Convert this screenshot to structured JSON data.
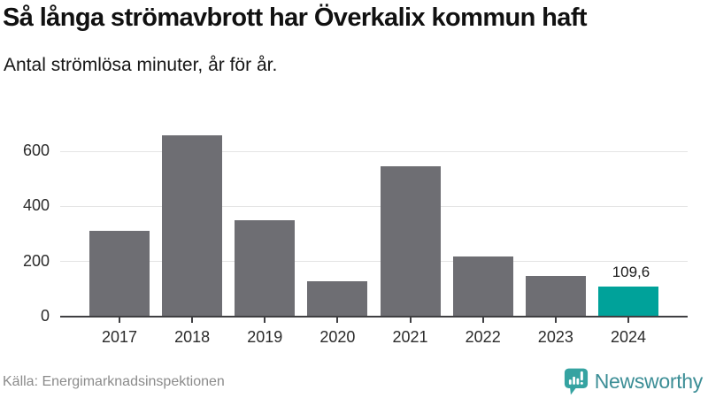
{
  "header": {
    "title": "Så långa strömavbrott har Överkalix kommun haft",
    "subtitle": "Antal strömlösa minuter, år för år."
  },
  "chart_data": {
    "type": "bar",
    "title": "Så långa strömavbrott har Överkalix kommun haft",
    "subtitle": "Antal strömlösa minuter, år för år.",
    "xlabel": "",
    "ylabel": "",
    "categories": [
      "2017",
      "2018",
      "2019",
      "2020",
      "2021",
      "2022",
      "2023",
      "2024"
    ],
    "values": [
      310,
      657,
      350,
      128,
      545,
      220,
      147,
      109.6
    ],
    "highlight_index": 7,
    "highlight_label": "109,6",
    "ylim": [
      0,
      700
    ],
    "yticks": [
      0,
      200,
      400,
      600
    ],
    "grid": true,
    "legend": "none",
    "colors": {
      "bar": "#6e6e73",
      "highlight": "#00a29a",
      "gridline": "#e4e4e4",
      "axis": "#3f3f42",
      "tick_label": "#2b2b2b",
      "value_label": "#1c1c1c"
    }
  },
  "footer": {
    "source": "Källa: Energimarknadsinspektionen",
    "brand": "Newsworthy",
    "brand_color": "#3c8e96",
    "brand_icon_color": "#35a3a1"
  }
}
